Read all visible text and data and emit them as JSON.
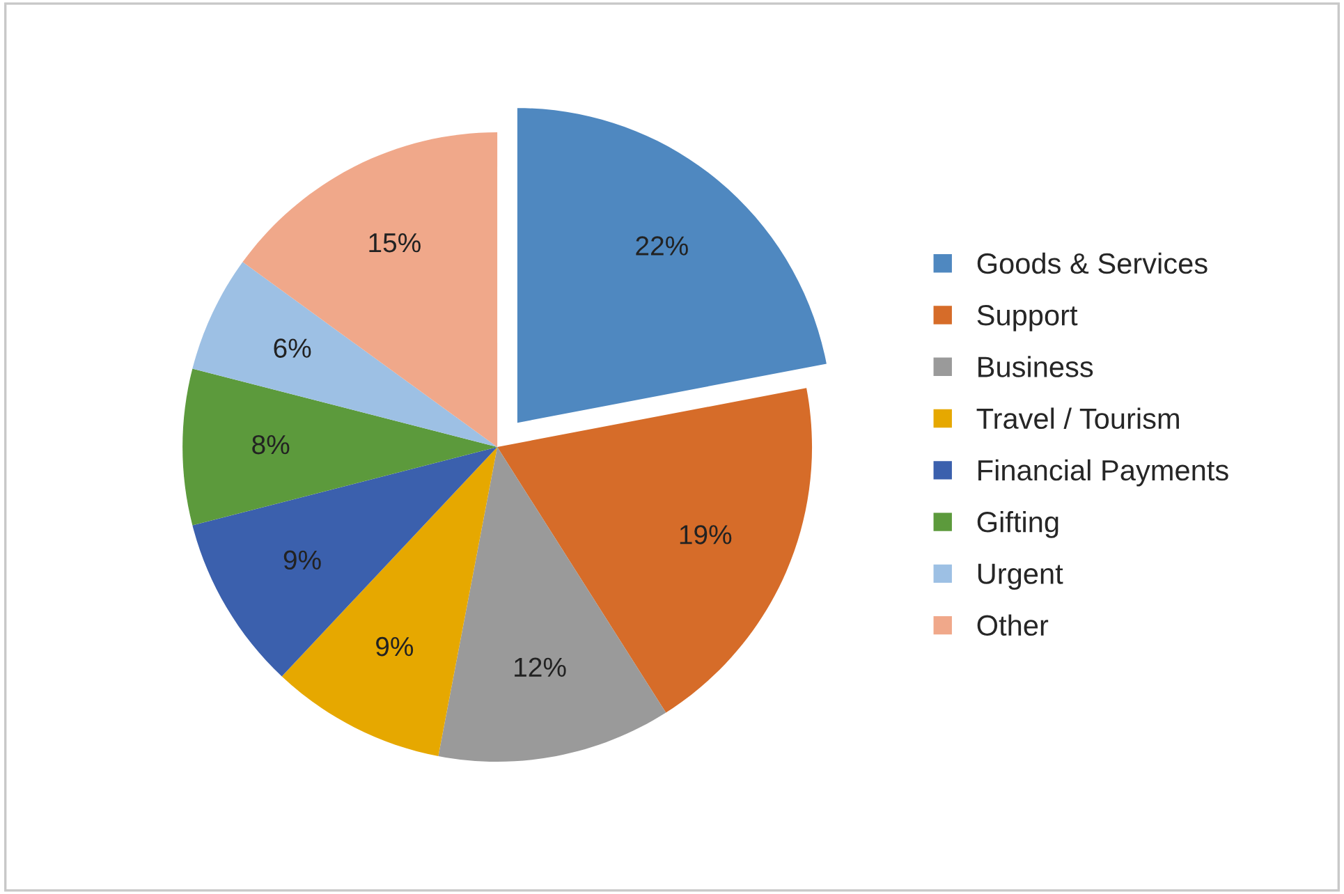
{
  "chart_data": {
    "type": "pie",
    "categories": [
      "Goods & Services",
      "Support",
      "Business",
      "Travel / Tourism",
      "Financial Payments",
      "Gifting",
      "Urgent",
      "Other"
    ],
    "values": [
      22,
      19,
      12,
      9,
      9,
      8,
      6,
      15
    ],
    "value_labels": [
      "22%",
      "19%",
      "12%",
      "9%",
      "9%",
      "8%",
      "6%",
      "15%"
    ],
    "colors": [
      "#4f88c0",
      "#d66c29",
      "#9a9a9a",
      "#e6a800",
      "#3b60ad",
      "#5c9a3c",
      "#9dc0e4",
      "#f0a88a"
    ],
    "legend": "right"
  }
}
